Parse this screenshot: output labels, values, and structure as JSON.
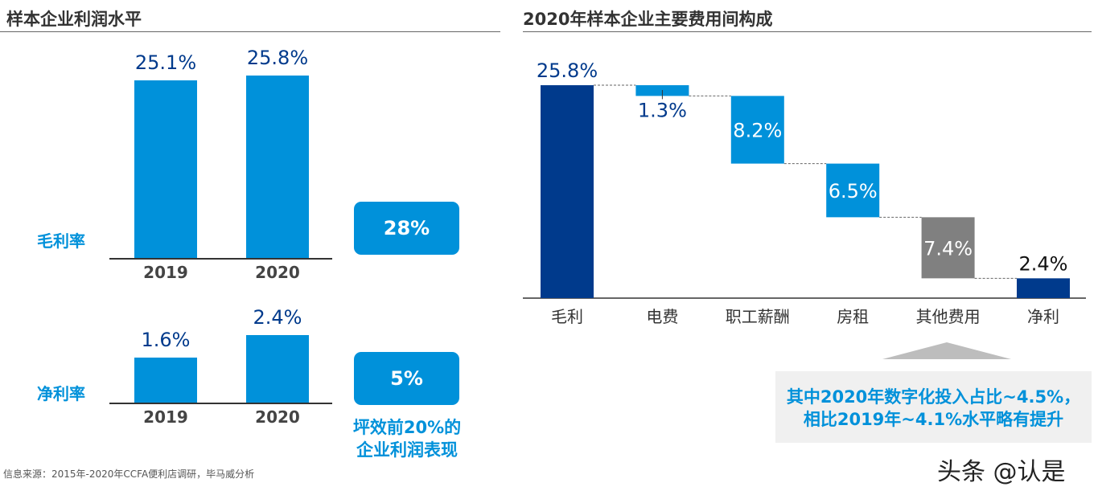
{
  "left": {
    "title": "样本企业利润水平",
    "gross": {
      "label": "毛利率",
      "highlight": "28%"
    },
    "net": {
      "label": "净利率",
      "highlight": "5%"
    },
    "highlight_note": [
      "坪效前20%的",
      "企业利润表现"
    ]
  },
  "right": {
    "title": "2020年样本企业主要费用间构成",
    "callout": [
      "其中2020年数字化投入占比~4.5%，",
      "相比2019年~4.1%水平略有提升"
    ]
  },
  "source": "信息来源：2015年-2020年CCFA便利店调研，毕马威分析",
  "watermark": "头条 @认是",
  "chart_data": [
    {
      "type": "bar",
      "categories": [
        "2019",
        "2020"
      ],
      "series": [
        {
          "name": "毛利率",
          "values": [
            25.1,
            25.8
          ]
        }
      ],
      "data_labels": [
        "25.1%",
        "25.8%"
      ],
      "color": "#0091da"
    },
    {
      "type": "bar",
      "categories": [
        "2019",
        "2020"
      ],
      "series": [
        {
          "name": "净利率",
          "values": [
            1.6,
            2.4
          ]
        }
      ],
      "data_labels": [
        "1.6%",
        "2.4%"
      ],
      "color": "#0091da"
    },
    {
      "type": "waterfall",
      "title": "2020年样本企业主要费用间构成",
      "categories": [
        "毛利",
        "电费",
        "职工薪酬",
        "房租",
        "其他费用",
        "净利"
      ],
      "values": [
        25.8,
        -1.3,
        -8.2,
        -6.5,
        -7.4,
        2.4
      ],
      "data_labels": [
        "25.8%",
        "1.3%",
        "8.2%",
        "6.5%",
        "7.4%",
        "2.4%"
      ],
      "colors": [
        "#003a8c",
        "#0091da",
        "#0091da",
        "#0091da",
        "#808080",
        "#003a8c"
      ]
    }
  ]
}
